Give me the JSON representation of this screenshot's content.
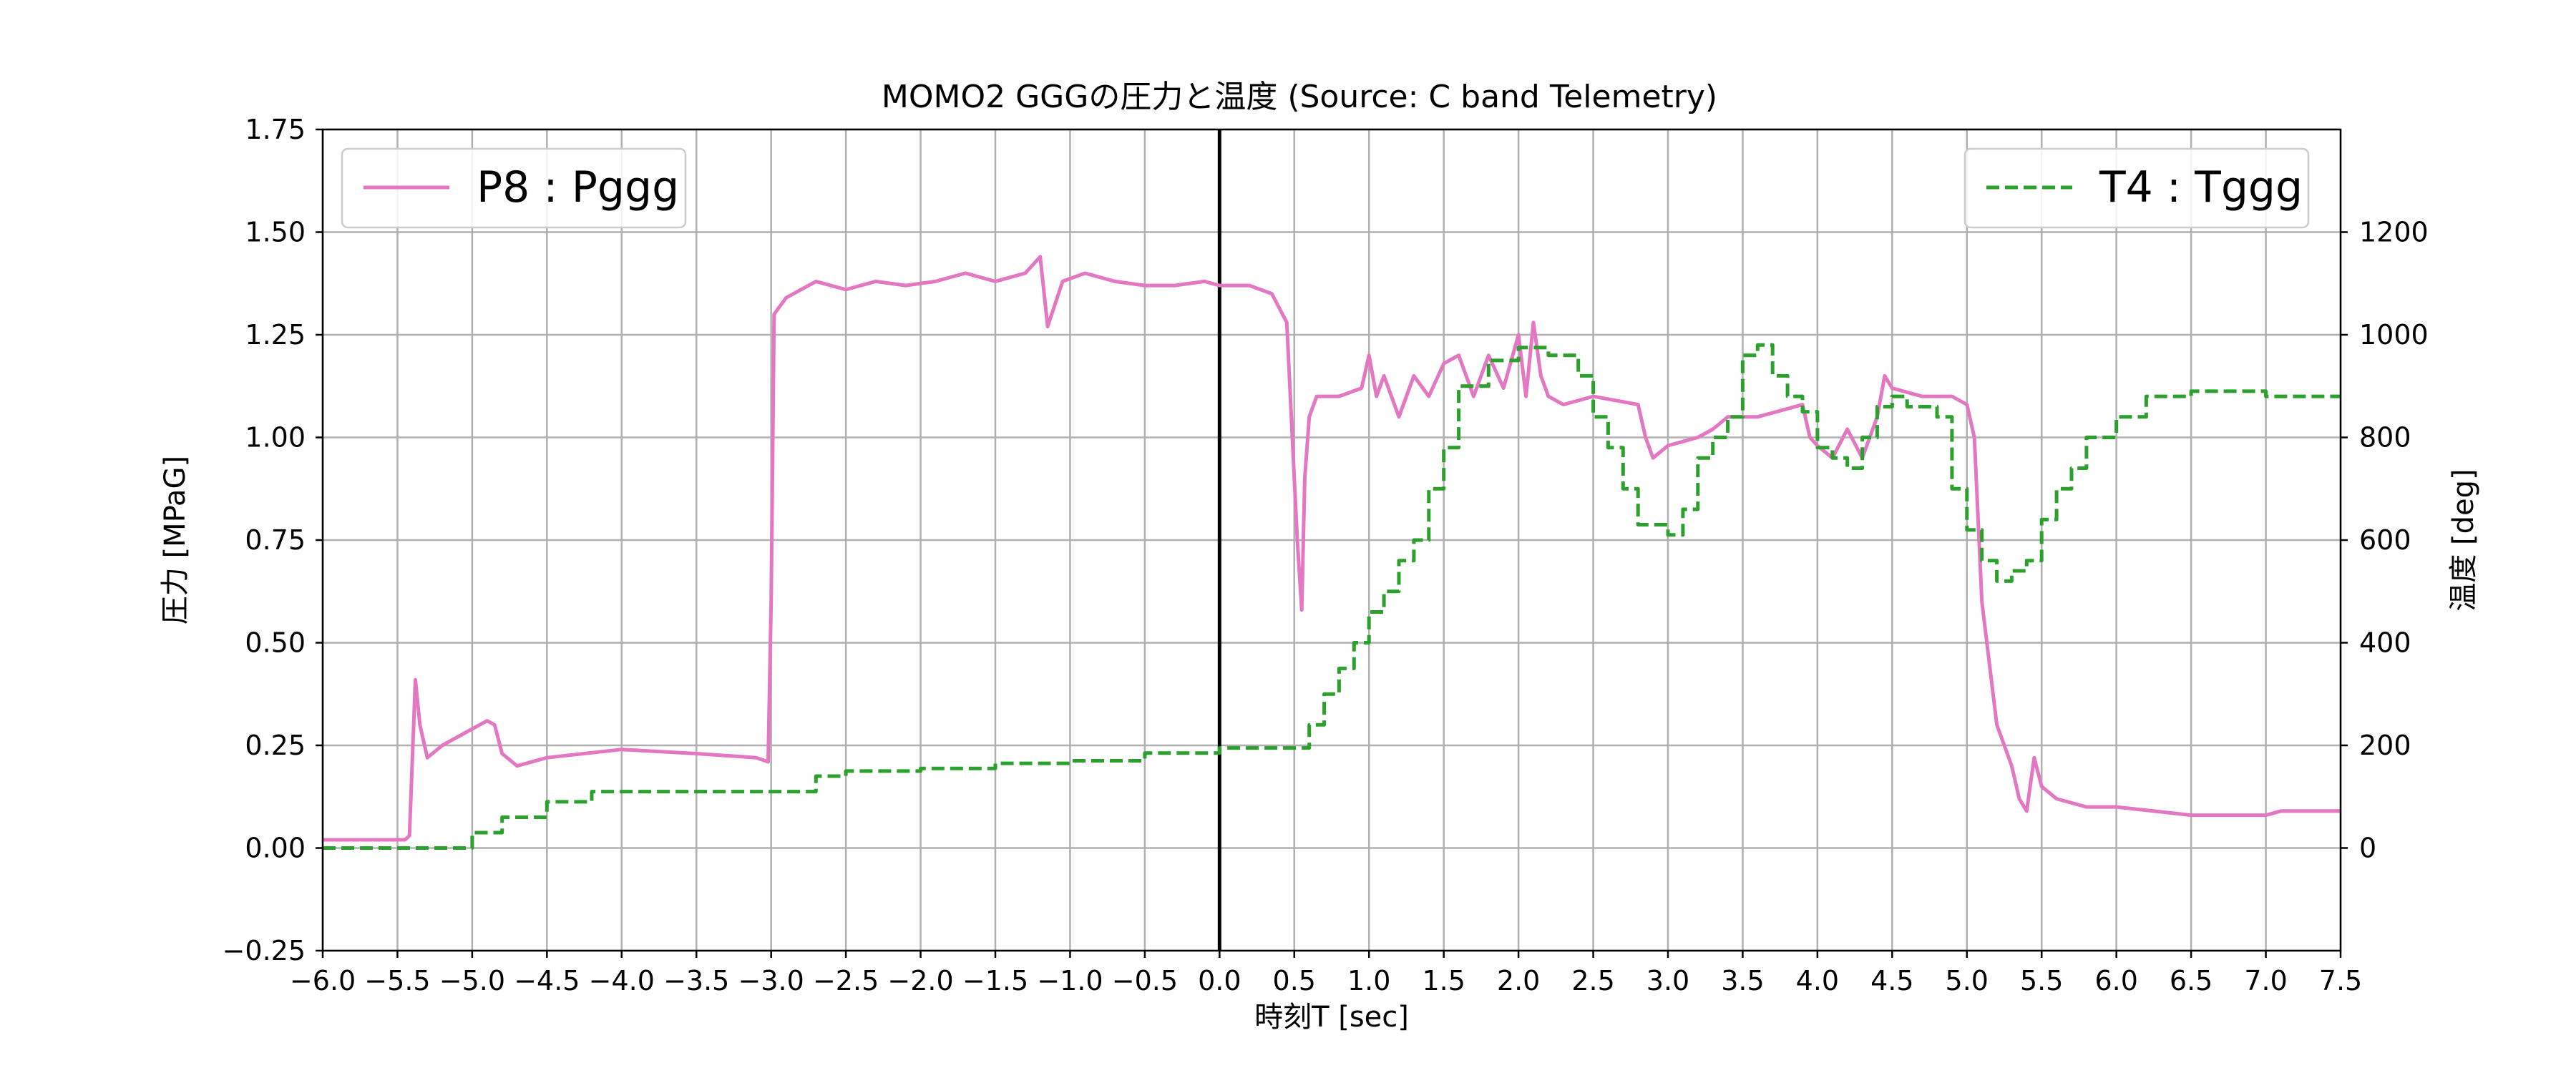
{
  "chart_data": {
    "type": "line",
    "title": "MOMO2 GGGの圧力と温度 (Source: C band Telemetry)",
    "xlabel": "時刻T [sec]",
    "ylabel": "圧力 [MPaG]",
    "ylabel_right": "温度 [deg]",
    "xlim": [
      -6.0,
      7.5
    ],
    "ylim": [
      -0.25,
      1.75
    ],
    "ylim_right": [
      -200,
      1400
    ],
    "grid": true,
    "x_ticks": [
      -6.0,
      -5.5,
      -5.0,
      -4.5,
      -4.0,
      -3.5,
      -3.0,
      -2.5,
      -2.0,
      -1.5,
      -1.0,
      -0.5,
      0.0,
      0.5,
      1.0,
      1.5,
      2.0,
      2.5,
      3.0,
      3.5,
      4.0,
      4.5,
      5.0,
      5.5,
      6.0,
      6.5,
      7.0,
      7.5
    ],
    "x_tick_labels": [
      "−6.0",
      "−5.5",
      "−5.0",
      "−4.5",
      "−4.0",
      "−3.5",
      "−3.0",
      "−2.5",
      "−2.0",
      "−1.5",
      "−1.0",
      "−0.5",
      "0.0",
      "0.5",
      "1.0",
      "1.5",
      "2.0",
      "2.5",
      "3.0",
      "3.5",
      "4.0",
      "4.5",
      "5.0",
      "5.5",
      "6.0",
      "6.5",
      "7.0",
      "7.5"
    ],
    "y_ticks": [
      -0.25,
      0.0,
      0.25,
      0.5,
      0.75,
      1.0,
      1.25,
      1.5,
      1.75
    ],
    "y_tick_labels": [
      "−0.25",
      "0.00",
      "0.25",
      "0.50",
      "0.75",
      "1.00",
      "1.25",
      "1.50",
      "1.75"
    ],
    "y_ticks_right": [
      0,
      200,
      400,
      600,
      800,
      1000,
      1200
    ],
    "y_tick_labels_right": [
      "0",
      "200",
      "400",
      "600",
      "800",
      "1000",
      "1200"
    ],
    "vertical_line_x": 0.0,
    "series": [
      {
        "name": "P8 : Pggg",
        "axis": "left",
        "color": "#e377c2",
        "style": "solid",
        "x": [
          -6.0,
          -5.6,
          -5.45,
          -5.42,
          -5.38,
          -5.35,
          -5.3,
          -5.2,
          -5.1,
          -5.0,
          -4.95,
          -4.9,
          -4.85,
          -4.8,
          -4.7,
          -4.5,
          -4.0,
          -3.5,
          -3.1,
          -3.02,
          -3.0,
          -2.98,
          -2.9,
          -2.7,
          -2.5,
          -2.3,
          -2.1,
          -1.9,
          -1.7,
          -1.5,
          -1.3,
          -1.2,
          -1.15,
          -1.05,
          -0.9,
          -0.7,
          -0.5,
          -0.3,
          -0.1,
          0.0,
          0.2,
          0.35,
          0.45,
          0.5,
          0.52,
          0.55,
          0.57,
          0.6,
          0.65,
          0.8,
          0.95,
          1.0,
          1.05,
          1.1,
          1.2,
          1.3,
          1.4,
          1.5,
          1.6,
          1.7,
          1.8,
          1.9,
          2.0,
          2.05,
          2.1,
          2.15,
          2.2,
          2.3,
          2.5,
          2.8,
          2.85,
          2.9,
          3.0,
          3.2,
          3.3,
          3.4,
          3.6,
          3.9,
          3.95,
          4.0,
          4.1,
          4.2,
          4.3,
          4.4,
          4.45,
          4.5,
          4.7,
          4.9,
          5.0,
          5.05,
          5.1,
          5.2,
          5.3,
          5.35,
          5.4,
          5.45,
          5.5,
          5.6,
          5.8,
          6.0,
          6.5,
          7.0,
          7.1,
          7.5
        ],
        "values": [
          0.02,
          0.02,
          0.02,
          0.03,
          0.41,
          0.3,
          0.22,
          0.25,
          0.27,
          0.29,
          0.3,
          0.31,
          0.3,
          0.23,
          0.2,
          0.22,
          0.24,
          0.23,
          0.22,
          0.21,
          0.6,
          1.3,
          1.34,
          1.38,
          1.36,
          1.38,
          1.37,
          1.38,
          1.4,
          1.38,
          1.4,
          1.44,
          1.27,
          1.38,
          1.4,
          1.38,
          1.37,
          1.37,
          1.38,
          1.37,
          1.37,
          1.35,
          1.28,
          0.9,
          0.75,
          0.58,
          0.9,
          1.05,
          1.1,
          1.1,
          1.12,
          1.2,
          1.1,
          1.15,
          1.05,
          1.15,
          1.1,
          1.18,
          1.2,
          1.1,
          1.2,
          1.12,
          1.25,
          1.1,
          1.28,
          1.15,
          1.1,
          1.08,
          1.1,
          1.08,
          1.0,
          0.95,
          0.98,
          1.0,
          1.02,
          1.05,
          1.05,
          1.08,
          1.0,
          0.98,
          0.95,
          1.02,
          0.95,
          1.05,
          1.15,
          1.12,
          1.1,
          1.1,
          1.08,
          1.0,
          0.6,
          0.3,
          0.2,
          0.12,
          0.09,
          0.22,
          0.15,
          0.12,
          0.1,
          0.1,
          0.08,
          0.08,
          0.09,
          0.09
        ]
      },
      {
        "name": "T4 : Tggg",
        "axis": "right",
        "color": "#2ca02c",
        "style": "dashed",
        "x": [
          -6.0,
          -5.5,
          -5.2,
          -5.0,
          -4.8,
          -4.5,
          -4.2,
          -4.0,
          -3.5,
          -3.0,
          -2.7,
          -2.5,
          -2.0,
          -1.5,
          -1.0,
          -0.5,
          0.0,
          0.5,
          0.6,
          0.7,
          0.8,
          0.9,
          1.0,
          1.1,
          1.2,
          1.3,
          1.4,
          1.5,
          1.6,
          1.8,
          2.0,
          2.2,
          2.4,
          2.5,
          2.6,
          2.7,
          2.8,
          3.0,
          3.1,
          3.2,
          3.3,
          3.4,
          3.5,
          3.6,
          3.7,
          3.8,
          3.9,
          4.0,
          4.1,
          4.2,
          4.3,
          4.4,
          4.5,
          4.6,
          4.8,
          4.9,
          5.0,
          5.1,
          5.2,
          5.3,
          5.4,
          5.5,
          5.6,
          5.7,
          5.8,
          6.0,
          6.2,
          6.5,
          6.8,
          7.0,
          7.5
        ],
        "values": [
          0,
          0,
          0,
          30,
          60,
          90,
          110,
          110,
          110,
          110,
          140,
          150,
          155,
          165,
          170,
          185,
          195,
          195,
          240,
          300,
          350,
          400,
          460,
          500,
          560,
          600,
          700,
          780,
          900,
          950,
          975,
          960,
          920,
          840,
          780,
          700,
          630,
          610,
          660,
          760,
          800,
          840,
          960,
          980,
          920,
          880,
          850,
          780,
          760,
          740,
          800,
          860,
          880,
          860,
          840,
          700,
          620,
          560,
          520,
          540,
          560,
          640,
          700,
          740,
          800,
          840,
          880,
          890,
          890,
          880,
          880
        ]
      }
    ]
  }
}
